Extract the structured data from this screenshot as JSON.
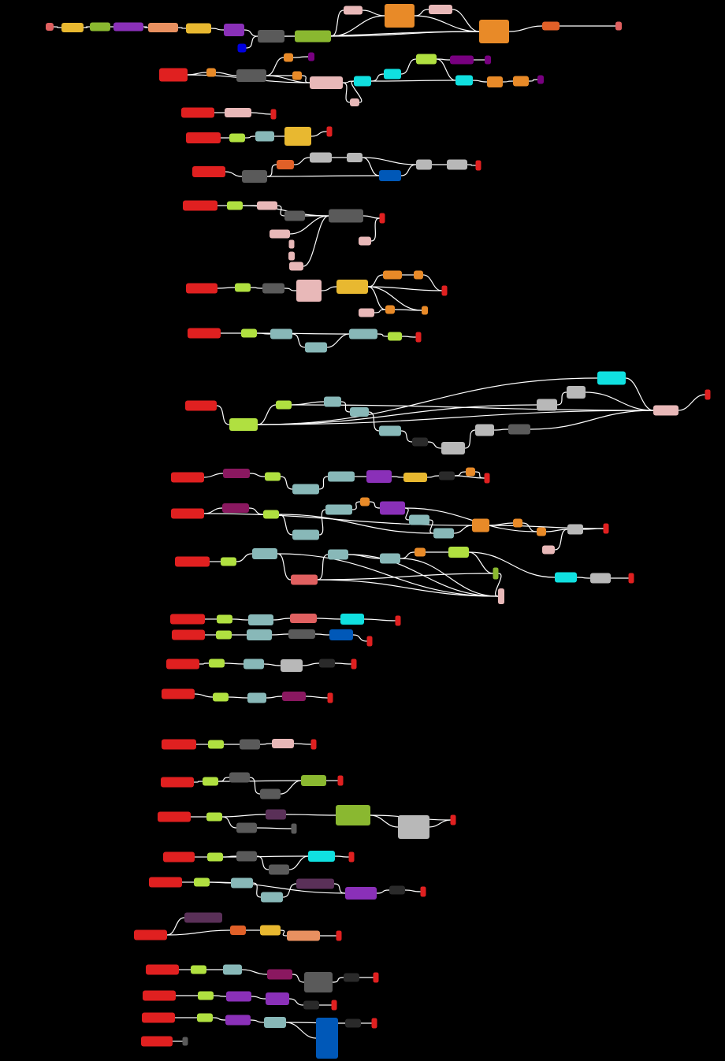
{
  "diagram": {
    "background": "#000000",
    "edge_color": "#ffffff",
    "palette": {
      "red": "#e02020",
      "salmon": "#e06060",
      "yellow": "#e8b830",
      "olive": "#8ab830",
      "lime": "#b0e040",
      "purple": "#8a30b8",
      "peach": "#e89060",
      "orange": "#e88a28",
      "dorange": "#e06028",
      "pink": "#e8b8b8",
      "grey": "#5a5a5a",
      "lgrey": "#b8b8b8",
      "dgrey": "#2a2a2a",
      "teal": "#88b8b8",
      "cyan": "#10e0e0",
      "blue": "#0058b8",
      "navy": "#0000e0",
      "magenta": "#8a1860",
      "plum": "#5a3058",
      "vpurple": "#780080"
    },
    "flows": [
      {
        "id": "flow-1",
        "kind": "main",
        "node_count": 24
      },
      {
        "id": "flow-2",
        "kind": "pipeline",
        "node_count": 4
      },
      {
        "id": "flow-3",
        "kind": "pipeline",
        "node_count": 5
      },
      {
        "id": "flow-4",
        "kind": "pipeline",
        "node_count": 9
      },
      {
        "id": "flow-5",
        "kind": "pipeline",
        "node_count": 11
      },
      {
        "id": "flow-6",
        "kind": "pipeline",
        "node_count": 11
      },
      {
        "id": "flow-7",
        "kind": "pipeline",
        "node_count": 8
      },
      {
        "id": "flow-8",
        "kind": "pipeline",
        "node_count": 17
      },
      {
        "id": "flow-9",
        "kind": "pipeline",
        "node_count": 11
      },
      {
        "id": "flow-10",
        "kind": "pipeline",
        "node_count": 17
      },
      {
        "id": "flow-11",
        "kind": "pipeline",
        "node_count": 15
      },
      {
        "id": "flow-12",
        "kind": "pipeline",
        "node_count": 12
      },
      {
        "id": "flow-13",
        "kind": "pipeline",
        "node_count": 6
      },
      {
        "id": "flow-14",
        "kind": "pipeline",
        "node_count": 6
      },
      {
        "id": "flow-15",
        "kind": "pipeline",
        "node_count": 5
      },
      {
        "id": "flow-16",
        "kind": "pipeline",
        "node_count": 6
      },
      {
        "id": "flow-17",
        "kind": "pipeline",
        "node_count": 8
      },
      {
        "id": "flow-18",
        "kind": "pipeline",
        "node_count": 8
      },
      {
        "id": "flow-19",
        "kind": "pipeline",
        "node_count": 7
      },
      {
        "id": "flow-20",
        "kind": "pipeline",
        "node_count": 9
      },
      {
        "id": "flow-21",
        "kind": "pipeline",
        "node_count": 6
      },
      {
        "id": "flow-22",
        "kind": "pipeline",
        "node_count": 7
      },
      {
        "id": "flow-23",
        "kind": "pipeline",
        "node_count": 6
      },
      {
        "id": "flow-24",
        "kind": "pipeline",
        "node_count": 6
      },
      {
        "id": "flow-25",
        "kind": "pipeline",
        "node_count": 2
      }
    ]
  }
}
